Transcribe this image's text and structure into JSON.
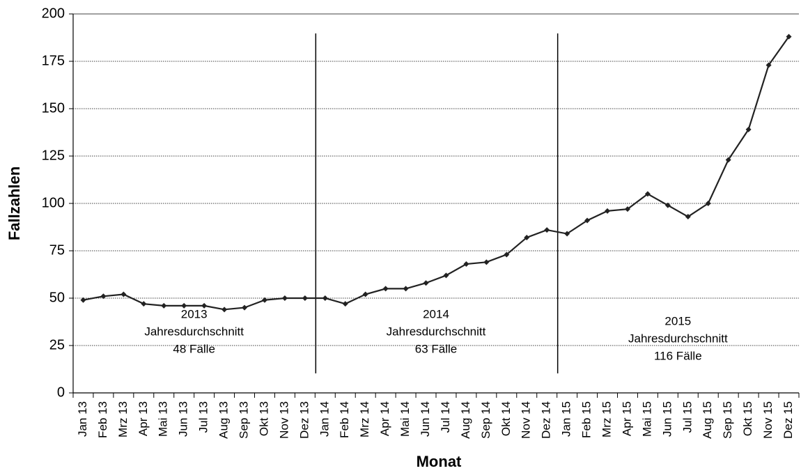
{
  "chart_data": {
    "type": "line",
    "y_label": "Fallzahlen",
    "x_label": "Monat",
    "categories": [
      "Jan 13",
      "Feb 13",
      "Mrz 13",
      "Apr 13",
      "Mai 13",
      "Jun 13",
      "Jul 13",
      "Aug 13",
      "Sep 13",
      "Okt 13",
      "Nov 13",
      "Dez 13",
      "Jan 14",
      "Feb 14",
      "Mrz 14",
      "Apr 14",
      "Mai 14",
      "Jun 14",
      "Jul 14",
      "Aug 14",
      "Sep 14",
      "Okt 14",
      "Nov 14",
      "Dez 14",
      "Jan 15",
      "Feb 15",
      "Mrz 15",
      "Apr 15",
      "Mai 15",
      "Jun 15",
      "Jul 15",
      "Aug 15",
      "Sep 15",
      "Okt 15",
      "Nov 15",
      "Dez 15"
    ],
    "values": [
      49,
      51,
      52,
      47,
      46,
      46,
      46,
      44,
      45,
      49,
      50,
      50,
      50,
      47,
      52,
      55,
      55,
      58,
      62,
      68,
      69,
      73,
      82,
      86,
      84,
      91,
      96,
      97,
      105,
      99,
      93,
      100,
      123,
      139,
      173,
      188
    ],
    "color": "#222222",
    "ylim": [
      0,
      200
    ],
    "yticks": [
      0,
      25,
      50,
      75,
      100,
      125,
      150,
      175,
      200
    ],
    "grid": true,
    "annotations": [
      {
        "lines": [
          "2013",
          "Jahresdurchschnitt",
          "48 Fälle"
        ]
      },
      {
        "lines": [
          "2014",
          "Jahresdurchschnitt",
          "63 Fälle"
        ]
      },
      {
        "lines": [
          "2015",
          "Jahresdurchschnitt",
          "116 Fälle"
        ]
      }
    ]
  }
}
